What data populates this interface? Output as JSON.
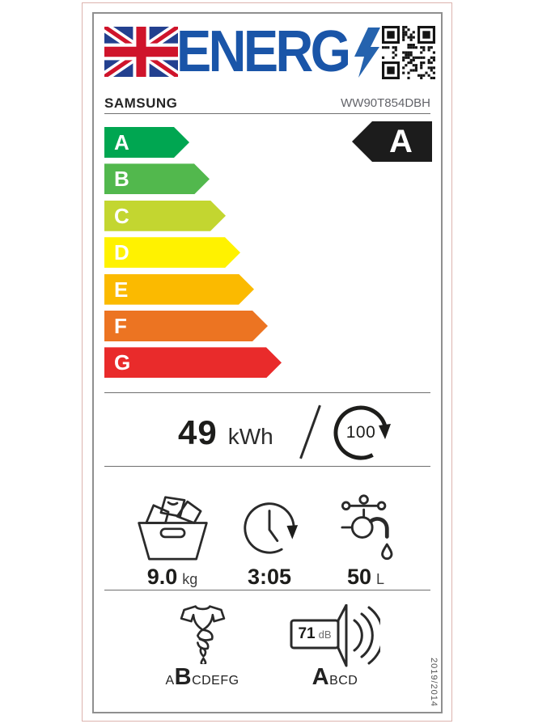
{
  "header": {
    "logo_text": "ENERG",
    "brand": "SAMSUNG",
    "model": "WW90T854DBH"
  },
  "rating_scale": {
    "rated_class": "A",
    "classes": [
      {
        "label": "A",
        "color": "#00a651",
        "relative_length": 105
      },
      {
        "label": "B",
        "color": "#52b84d",
        "relative_length": 130
      },
      {
        "label": "C",
        "color": "#c3d630",
        "relative_length": 150
      },
      {
        "label": "D",
        "color": "#fff200",
        "relative_length": 168
      },
      {
        "label": "E",
        "color": "#fbba00",
        "relative_length": 185
      },
      {
        "label": "F",
        "color": "#ec7422",
        "relative_length": 202
      },
      {
        "label": "G",
        "color": "#e92b2b",
        "relative_length": 219
      }
    ]
  },
  "energy": {
    "value": "49",
    "unit": "kWh",
    "per_cycles": "100"
  },
  "metrics": {
    "capacity": {
      "icon": "laundry-load-icon",
      "value": "9.0",
      "unit": "kg"
    },
    "duration": {
      "icon": "cycle-duration-icon",
      "value": "3:05",
      "unit": ""
    },
    "water": {
      "icon": "water-tap-icon",
      "value": "50",
      "unit": "L"
    }
  },
  "spin_class": {
    "icon": "spin-dry-icon",
    "prefix": "A",
    "rated": "B",
    "suffix": "CDEFG"
  },
  "noise_class": {
    "icon": "noise-speaker-icon",
    "value": "71",
    "unit": "dB",
    "rated": "A",
    "suffix": "BCD"
  },
  "regulation": "2019/2014",
  "colors": {
    "logo_blue": "#1a55a8",
    "flag_blue": "#23408f",
    "flag_red": "#cf142b",
    "rated_arrow_black": "#1c1c1c",
    "frame_pink": "#dcb3ae",
    "border_gray": "#8f8f8f"
  }
}
